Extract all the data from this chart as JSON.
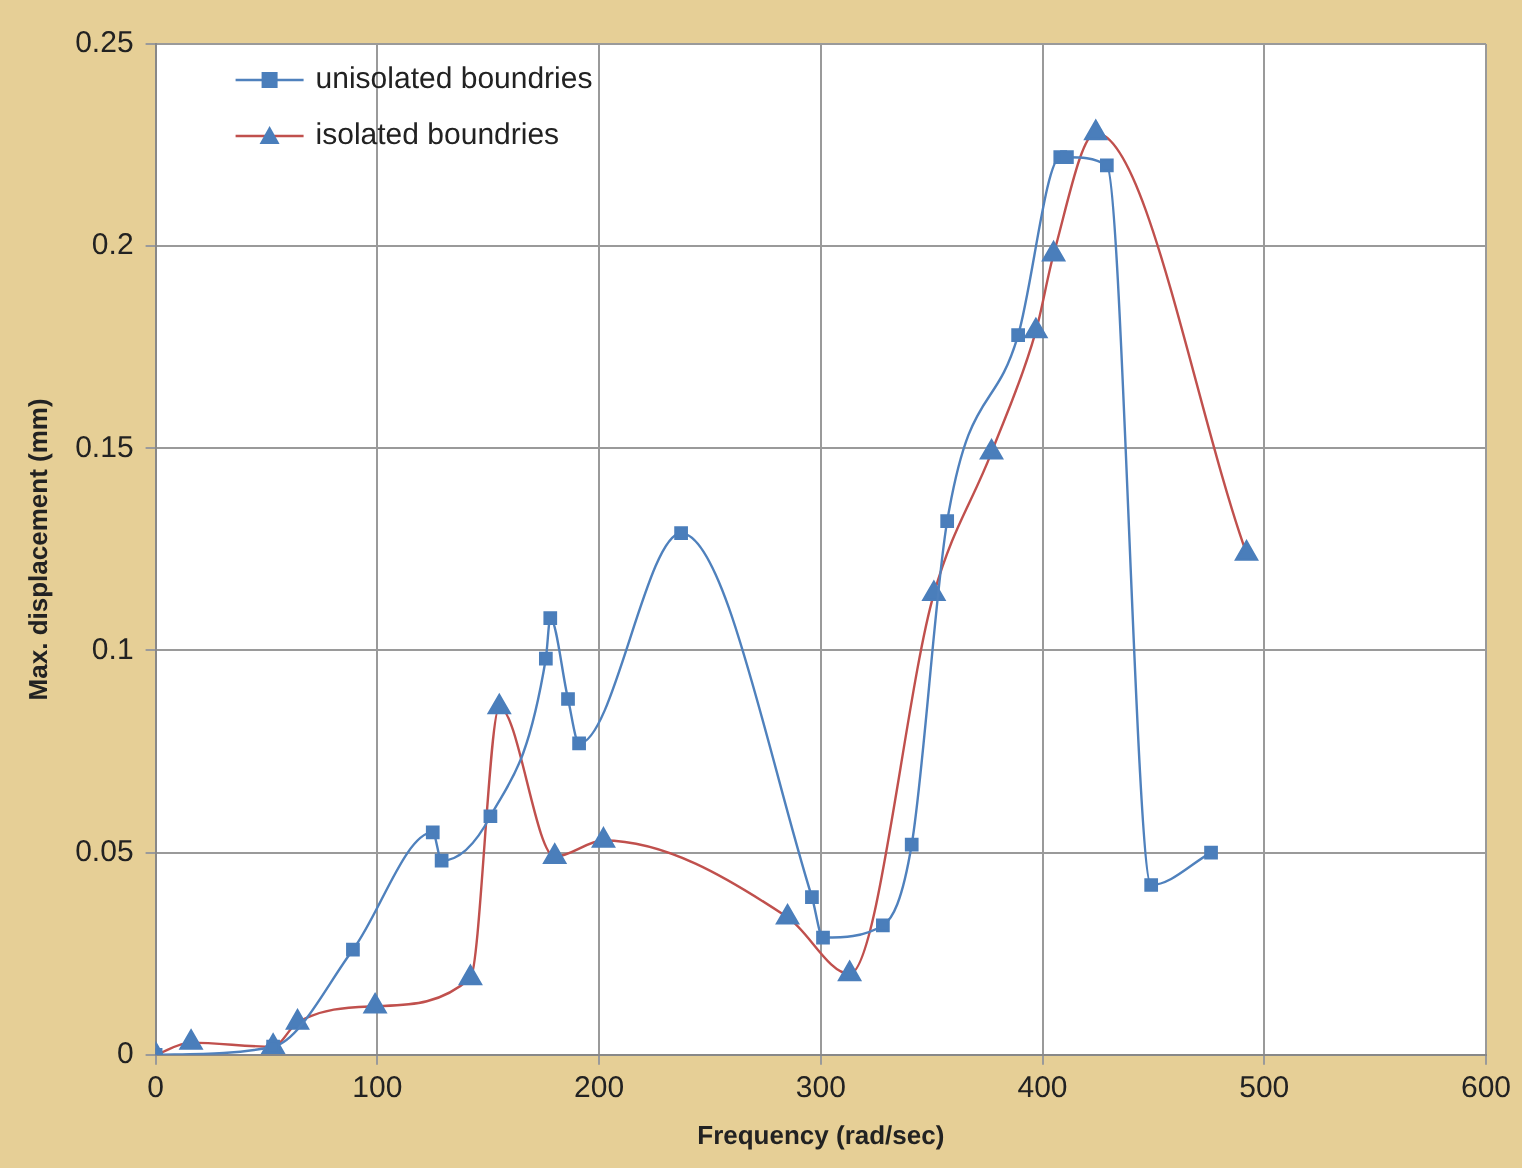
{
  "chart_data": {
    "type": "line",
    "xlabel": "Frequency (rad/sec)",
    "ylabel": "Max. displacement (mm)",
    "xlim": [
      0,
      600
    ],
    "xticks": [
      0,
      100,
      200,
      300,
      400,
      500,
      600
    ],
    "ylim": [
      0,
      0.25
    ],
    "yticks": [
      0,
      0.05,
      0.1,
      0.15,
      0.2,
      0.25
    ],
    "grid": true,
    "legend": "top left",
    "line_style": "solid",
    "series": [
      {
        "name": "unisolated boundries",
        "color": "#4f81bd",
        "marker": "square",
        "x": [
          0,
          53,
          89,
          125,
          129,
          151,
          176,
          178,
          186,
          191,
          237,
          296,
          301,
          328,
          341,
          357,
          389,
          408,
          411,
          429,
          449,
          476
        ],
        "values": [
          0,
          0.002,
          0.026,
          0.055,
          0.048,
          0.059,
          0.098,
          0.108,
          0.088,
          0.077,
          0.129,
          0.039,
          0.029,
          0.032,
          0.052,
          0.132,
          0.178,
          0.222,
          0.222,
          0.22,
          0.042,
          0.05
        ]
      },
      {
        "name": "isolated boundries",
        "color": "#c0504d",
        "marker": "triangle",
        "x": [
          0,
          16,
          53,
          64,
          99,
          142,
          155,
          180,
          202,
          285,
          313,
          351,
          377,
          397,
          405,
          424,
          492
        ],
        "values": [
          0,
          0.003,
          0.002,
          0.008,
          0.012,
          0.019,
          0.086,
          0.049,
          0.053,
          0.034,
          0.02,
          0.114,
          0.149,
          0.179,
          0.198,
          0.228,
          0.124
        ]
      }
    ]
  }
}
